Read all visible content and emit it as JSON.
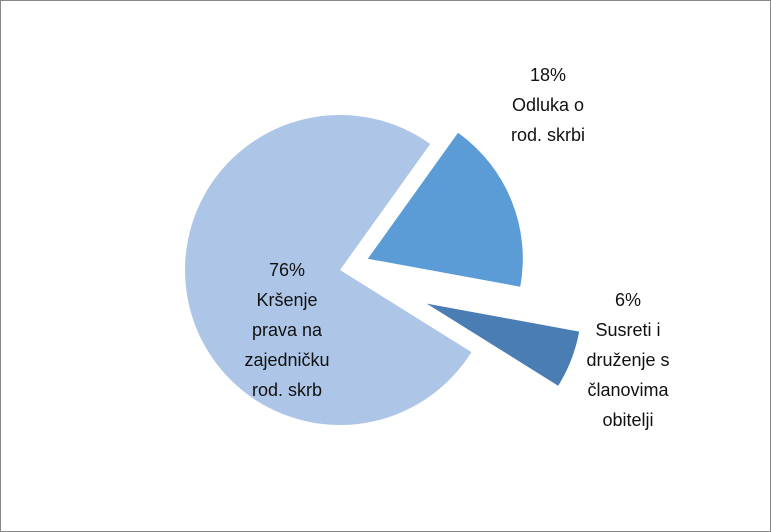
{
  "chart_data": {
    "type": "pie",
    "categories": [
      "Kršenje prava na zajedničku rod. skrb",
      "Odluka o rod. skrbi",
      "Susreti i druženje s članovima obitelji"
    ],
    "values": [
      76,
      18,
      6
    ],
    "value_labels": [
      "76%",
      "18%",
      "6%"
    ],
    "colors": [
      "#adc6e7",
      "#5b9bd6",
      "#4a7db4"
    ]
  }
}
